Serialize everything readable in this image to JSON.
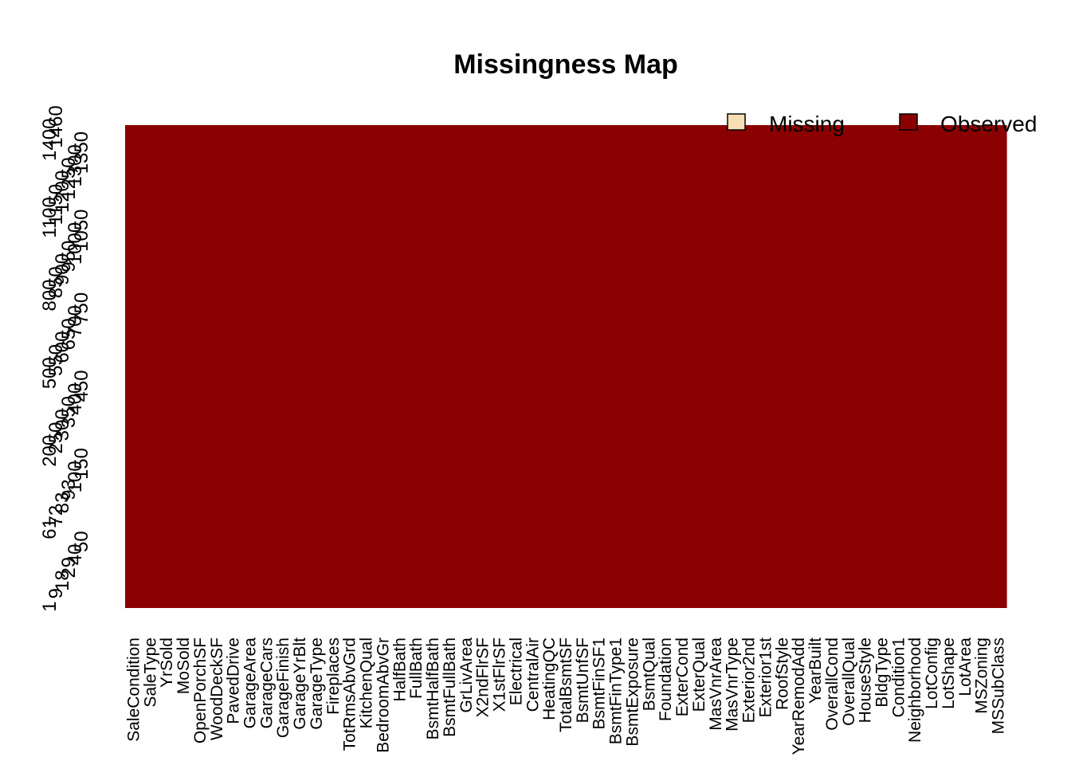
{
  "chart_data": {
    "type": "heatmap",
    "title": "Missingness Map",
    "xlabel": "",
    "ylabel": "",
    "legend": {
      "placement": "top-right",
      "entries": [
        {
          "label": "Missing",
          "color": "#f5deb3"
        },
        {
          "label": "Observed",
          "color": "#8b0000"
        }
      ]
    },
    "columns": [
      "SaleCondition",
      "SaleType",
      "YrSold",
      "MoSold",
      "OpenPorchSF",
      "WoodDeckSF",
      "PavedDrive",
      "GarageArea",
      "GarageCars",
      "GarageFinish",
      "GarageYrBlt",
      "GarageType",
      "Fireplaces",
      "TotRmsAbvGrd",
      "KitchenQual",
      "BedroomAbvGr",
      "HalfBath",
      "FullBath",
      "BsmtHalfBath",
      "BsmtFullBath",
      "GrLivArea",
      "X2ndFlrSF",
      "X1stFlrSF",
      "Electrical",
      "CentralAir",
      "HeatingQC",
      "TotalBsmtSF",
      "BsmtUnfSF",
      "BsmtFinSF1",
      "BsmtFinType1",
      "BsmtExposure",
      "BsmtQual",
      "Foundation",
      "ExterCond",
      "ExterQual",
      "MasVnrArea",
      "MasVnrType",
      "Exterior2nd",
      "Exterior1st",
      "RoofStyle",
      "YearRemodAdd",
      "YearBuilt",
      "OverallCond",
      "OverallQual",
      "HouseStyle",
      "BldgType",
      "Condition1",
      "Neighborhood",
      "LotConfig",
      "LotShape",
      "LotArea",
      "MSZoning",
      "MSSubClass"
    ],
    "missing_fraction_per_column": [
      0,
      0,
      0,
      0,
      0,
      0,
      0,
      0,
      0,
      0,
      0,
      0,
      0,
      0,
      0,
      0,
      0,
      0,
      0,
      0,
      0,
      0,
      0,
      0,
      0,
      0,
      0,
      0,
      0,
      0,
      0,
      0,
      0,
      0,
      0,
      0,
      0,
      0,
      0,
      0,
      0,
      0,
      0,
      0,
      0,
      0,
      0,
      0,
      0,
      0,
      0,
      0,
      0
    ],
    "row_tick_labels": [
      "1",
      "9",
      "18",
      "29",
      "40",
      "50",
      "61",
      "72",
      "83",
      "93",
      "100",
      "150",
      "200",
      "250",
      "300",
      "350",
      "400",
      "450",
      "500",
      "550",
      "600",
      "650",
      "700",
      "750",
      "800",
      "850",
      "900",
      "950",
      "1000",
      "1050",
      "1100",
      "1150",
      "1200",
      "1250",
      "1300",
      "1350",
      "1400",
      "1460"
    ],
    "cell_color": "#8b0000",
    "missing_color": "#f5deb3"
  }
}
